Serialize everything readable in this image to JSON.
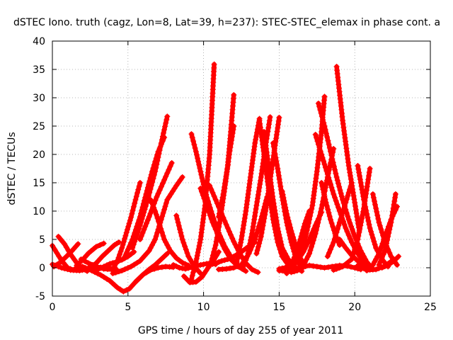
{
  "chart_data": {
    "type": "scatter",
    "title": "dSTEC Iono. truth (cagz, Lon=8, Lat=39, h=237): STEC-STEC_elemax in phase cont. a",
    "xlabel": "GPS time / hours of day 255 of year 2011",
    "ylabel": "dSTEC  / TECUs",
    "xlim": [
      0,
      25
    ],
    "ylim": [
      -5,
      40
    ],
    "xticks": [
      0,
      5,
      10,
      15,
      20,
      25
    ],
    "yticks": [
      -5,
      0,
      5,
      10,
      15,
      20,
      25,
      30,
      35,
      40
    ],
    "grid": true,
    "marker": "plus",
    "color": "#ff0000",
    "series": [
      {
        "x": [
          0.0,
          0.3,
          0.6,
          1.0,
          1.4,
          1.7
        ],
        "y": [
          3.9,
          2.6,
          1.3,
          0.0,
          -0.4,
          0.2
        ]
      },
      {
        "x": [
          0.1,
          0.5,
          0.9,
          1.3,
          1.7
        ],
        "y": [
          0.2,
          0.9,
          1.9,
          3.0,
          4.2
        ]
      },
      {
        "x": [
          0.4,
          0.8,
          1.2,
          1.6,
          2.0,
          2.3
        ],
        "y": [
          5.5,
          4.2,
          2.4,
          0.9,
          -0.1,
          -0.6
        ]
      },
      {
        "x": [
          0.0,
          0.6,
          1.2,
          1.8,
          2.4,
          3.0,
          3.6,
          4.2
        ],
        "y": [
          0.6,
          0.0,
          -0.4,
          -0.5,
          -0.2,
          0.1,
          0.0,
          -0.2
        ]
      },
      {
        "x": [
          1.6,
          2.0,
          2.4,
          2.9,
          3.4
        ],
        "y": [
          0.4,
          1.4,
          2.6,
          3.7,
          4.3
        ]
      },
      {
        "x": [
          1.9,
          2.4,
          2.9,
          3.4,
          3.9
        ],
        "y": [
          1.5,
          0.8,
          0.2,
          -0.2,
          -0.3
        ]
      },
      {
        "x": [
          2.4,
          2.9,
          3.3,
          3.7,
          4.1,
          4.4
        ],
        "y": [
          0.0,
          0.8,
          2.0,
          3.0,
          4.0,
          4.5
        ]
      },
      {
        "x": [
          3.0,
          3.4,
          3.8,
          4.2,
          4.6,
          5.0,
          5.4
        ],
        "y": [
          -0.3,
          0.2,
          0.7,
          1.0,
          1.4,
          2.0,
          2.8
        ]
      },
      {
        "x": [
          2.0,
          2.6,
          3.2,
          3.8,
          4.3,
          4.7,
          5.1,
          5.5,
          6.0,
          6.4,
          6.8,
          7.2,
          7.6
        ],
        "y": [
          0.2,
          -0.5,
          -1.3,
          -2.3,
          -3.5,
          -4.2,
          -3.7,
          -2.5,
          -1.2,
          -0.3,
          0.5,
          1.5,
          2.5
        ]
      },
      {
        "x": [
          4.0,
          4.3,
          4.6,
          4.9,
          5.2,
          5.5,
          5.8
        ],
        "y": [
          -0.3,
          1.2,
          3.5,
          6.2,
          8.9,
          12.0,
          15.0
        ]
      },
      {
        "x": [
          4.0,
          4.6,
          5.2,
          5.8,
          6.4,
          6.8,
          7.2,
          7.6,
          8.2,
          8.6
        ],
        "y": [
          -1.0,
          -0.5,
          0.2,
          1.2,
          3.0,
          5.0,
          8.5,
          12.0,
          14.5,
          16.0
        ]
      },
      {
        "x": [
          4.8,
          5.3,
          5.8,
          6.2,
          6.6,
          7.0,
          7.4
        ],
        "y": [
          2.0,
          5.0,
          9.0,
          13.0,
          17.0,
          20.5,
          23.0
        ]
      },
      {
        "x": [
          5.3,
          5.8,
          6.3,
          6.8,
          7.2,
          7.6
        ],
        "y": [
          3.5,
          7.5,
          12.0,
          17.0,
          22.0,
          26.7
        ]
      },
      {
        "x": [
          5.8,
          6.4,
          6.9,
          7.4,
          7.9
        ],
        "y": [
          5.0,
          9.0,
          12.5,
          15.5,
          18.5
        ]
      },
      {
        "x": [
          5.5,
          6.0,
          6.5,
          7.0,
          7.5,
          8.0
        ],
        "y": [
          -2.5,
          -1.2,
          -0.4,
          0.0,
          0.2,
          0.1
        ]
      },
      {
        "x": [
          6.5,
          6.8,
          7.1,
          7.4,
          7.8,
          8.2,
          8.6,
          9.0
        ],
        "y": [
          12.0,
          10.0,
          7.5,
          5.0,
          3.0,
          1.7,
          0.9,
          0.4
        ]
      },
      {
        "x": [
          8.0,
          8.4,
          8.8,
          9.2,
          9.6,
          10.0,
          10.4,
          10.8
        ],
        "y": [
          0.5,
          0.0,
          -0.2,
          0.1,
          0.4,
          0.6,
          0.8,
          0.6
        ]
      },
      {
        "x": [
          8.7,
          9.1,
          9.5,
          9.9,
          10.3,
          10.7,
          11.0
        ],
        "y": [
          -1.5,
          -2.6,
          -2.5,
          -1.6,
          0.0,
          1.5,
          2.8
        ]
      },
      {
        "x": [
          8.2,
          8.6,
          9.0,
          9.4,
          9.8
        ],
        "y": [
          9.2,
          5.0,
          2.0,
          0.2,
          -1.0
        ]
      },
      {
        "x": [
          9.2,
          9.5,
          9.8,
          10.1,
          10.4,
          10.7
        ],
        "y": [
          -2.0,
          1.0,
          5.0,
          11.0,
          20.0,
          35.9
        ]
      },
      {
        "x": [
          9.2,
          9.5,
          9.8,
          10.1,
          10.5,
          10.9,
          11.4,
          11.9,
          12.4
        ],
        "y": [
          23.6,
          20.5,
          17.0,
          13.5,
          10.0,
          6.8,
          3.8,
          1.5,
          0.2
        ]
      },
      {
        "x": [
          9.8,
          10.2,
          10.6,
          11.0,
          11.4,
          11.8,
          12.3,
          12.8
        ],
        "y": [
          14.0,
          11.0,
          8.0,
          5.5,
          3.3,
          1.5,
          0.2,
          -0.6
        ]
      },
      {
        "x": [
          10.4,
          10.8,
          11.2,
          11.6,
          12.0,
          12.4,
          12.8,
          13.2,
          13.6
        ],
        "y": [
          14.5,
          12.0,
          9.5,
          7.0,
          4.6,
          2.5,
          0.8,
          -0.3,
          -0.8
        ]
      },
      {
        "x": [
          10.5,
          10.8,
          11.1,
          11.4,
          11.7,
          12.0
        ],
        "y": [
          1.0,
          4.0,
          8.5,
          14.0,
          20.0,
          25.0
        ]
      },
      {
        "x": [
          11.0,
          11.3,
          11.6,
          11.8,
          12.0
        ],
        "y": [
          9.0,
          13.0,
          18.0,
          24.0,
          30.5
        ]
      },
      {
        "x": [
          10.4,
          10.8,
          11.2,
          11.6,
          12.0,
          12.4,
          12.8,
          13.1,
          13.4
        ],
        "y": [
          0.5,
          0.8,
          1.2,
          1.5,
          2.0,
          2.6,
          3.4,
          4.0,
          4.5
        ]
      },
      {
        "x": [
          11.0,
          11.5,
          12.0,
          12.5,
          13.0,
          13.4,
          13.8,
          14.2
        ],
        "y": [
          -0.3,
          -0.2,
          0.0,
          0.5,
          2.5,
          5.0,
          8.5,
          12.5
        ]
      },
      {
        "x": [
          12.2,
          12.5,
          12.8,
          13.1,
          13.4,
          13.7
        ],
        "y": [
          1.0,
          5.0,
          10.0,
          16.0,
          22.0,
          26.3
        ]
      },
      {
        "x": [
          12.6,
          12.9,
          13.2,
          13.5,
          13.8,
          14.1,
          14.4
        ],
        "y": [
          0.0,
          2.0,
          6.0,
          11.0,
          16.0,
          21.5,
          26.6
        ]
      },
      {
        "x": [
          13.5,
          13.8,
          14.1,
          14.4,
          14.7,
          15.0
        ],
        "y": [
          2.5,
          5.5,
          10.0,
          15.5,
          21.0,
          26.5
        ]
      },
      {
        "x": [
          13.7,
          14.0,
          14.3,
          14.6,
          14.9,
          15.2,
          15.6,
          16.0
        ],
        "y": [
          26.0,
          20.0,
          14.0,
          8.5,
          4.5,
          2.0,
          0.5,
          -0.3
        ]
      },
      {
        "x": [
          14.0,
          14.3,
          14.6,
          14.9,
          15.2,
          15.6,
          16.0,
          16.5
        ],
        "y": [
          24.0,
          18.0,
          12.0,
          7.0,
          3.5,
          1.5,
          0.2,
          -0.6
        ]
      },
      {
        "x": [
          14.6,
          14.9,
          15.2,
          15.5,
          15.8,
          16.1,
          16.5
        ],
        "y": [
          22.0,
          17.5,
          12.5,
          8.0,
          4.5,
          1.8,
          -0.2
        ]
      },
      {
        "x": [
          15.2,
          15.5,
          15.8,
          16.1,
          16.4,
          16.7
        ],
        "y": [
          13.5,
          9.5,
          6.5,
          3.8,
          1.7,
          0.3
        ]
      },
      {
        "x": [
          15.0,
          15.4,
          15.8,
          16.2,
          16.6,
          17.0,
          17.4,
          17.8
        ],
        "y": [
          -0.2,
          0.0,
          0.4,
          1.2,
          2.8,
          5.0,
          7.5,
          9.8
        ]
      },
      {
        "x": [
          15.5,
          15.8,
          16.1,
          16.4,
          16.7,
          17.0
        ],
        "y": [
          -1.0,
          0.5,
          2.5,
          5.0,
          7.8,
          10.0
        ]
      },
      {
        "x": [
          15.0,
          15.5,
          16.0,
          16.5,
          17.0,
          17.5,
          18.0,
          18.5,
          19.0,
          19.5,
          20.0,
          20.4
        ],
        "y": [
          -0.5,
          -0.6,
          -0.3,
          0.1,
          0.4,
          0.2,
          0.0,
          0.2,
          0.4,
          0.3,
          0.0,
          -0.3
        ]
      },
      {
        "x": [
          15.8,
          16.2,
          16.6,
          17.0,
          17.4,
          17.8,
          18.2,
          18.6
        ],
        "y": [
          -0.8,
          -0.5,
          0.4,
          2.5,
          6.0,
          10.5,
          16.0,
          21.0
        ]
      },
      {
        "x": [
          16.0,
          16.4,
          16.8,
          17.2,
          17.5,
          17.8,
          18.0
        ],
        "y": [
          0.5,
          2.5,
          6.0,
          11.0,
          17.0,
          24.0,
          30.2
        ]
      },
      {
        "x": [
          17.6,
          18.0,
          18.4,
          18.8,
          19.2,
          19.6,
          20.0,
          20.4,
          20.8,
          21.2
        ],
        "y": [
          29.0,
          25.0,
          20.5,
          16.0,
          12.0,
          8.5,
          5.5,
          3.0,
          1.0,
          -0.2
        ]
      },
      {
        "x": [
          17.4,
          17.8,
          18.2,
          18.6,
          19.0,
          19.4,
          19.8,
          20.2,
          20.6,
          21.0
        ],
        "y": [
          23.5,
          20.0,
          16.5,
          13.0,
          10.0,
          7.0,
          4.5,
          2.5,
          1.0,
          0.0
        ]
      },
      {
        "x": [
          17.8,
          18.1,
          18.4,
          18.7,
          19.0
        ],
        "y": [
          15.0,
          11.5,
          8.5,
          6.0,
          4.0
        ]
      },
      {
        "x": [
          18.8,
          19.2,
          19.6,
          20.0,
          20.3
        ],
        "y": [
          35.5,
          26.0,
          18.0,
          11.5,
          6.5
        ]
      },
      {
        "x": [
          18.2,
          18.6,
          19.0,
          19.4,
          19.8
        ],
        "y": [
          2.0,
          4.5,
          8.0,
          11.5,
          15.0
        ]
      },
      {
        "x": [
          19.0,
          19.4,
          19.8,
          20.2,
          20.6,
          21.0
        ],
        "y": [
          5.0,
          3.5,
          2.2,
          1.2,
          0.4,
          -0.2
        ]
      },
      {
        "x": [
          18.6,
          19.2,
          19.8,
          20.2,
          20.6,
          21.0
        ],
        "y": [
          -0.4,
          0.2,
          1.5,
          5.0,
          10.5,
          17.5
        ]
      },
      {
        "x": [
          20.2,
          20.6,
          21.0,
          21.4,
          21.8,
          22.2
        ],
        "y": [
          18.0,
          12.0,
          7.0,
          3.5,
          1.5,
          0.2
        ]
      },
      {
        "x": [
          20.8,
          21.2,
          21.6,
          22.0,
          22.4,
          22.8
        ],
        "y": [
          -0.5,
          0.5,
          2.5,
          5.5,
          8.5,
          10.8
        ]
      },
      {
        "x": [
          20.2,
          20.8,
          21.4,
          22.0,
          22.6
        ],
        "y": [
          0.4,
          -0.4,
          -0.3,
          0.3,
          1.5
        ]
      },
      {
        "x": [
          21.2,
          21.6,
          22.0,
          22.4,
          22.8
        ],
        "y": [
          13.0,
          8.0,
          4.5,
          2.0,
          0.5
        ]
      },
      {
        "x": [
          21.6,
          22.0,
          22.4,
          22.7
        ],
        "y": [
          0.5,
          3.0,
          8.0,
          13.0
        ]
      },
      {
        "x": [
          21.8,
          22.2,
          22.6,
          22.9
        ],
        "y": [
          0.0,
          0.5,
          1.2,
          2.0
        ]
      }
    ]
  }
}
